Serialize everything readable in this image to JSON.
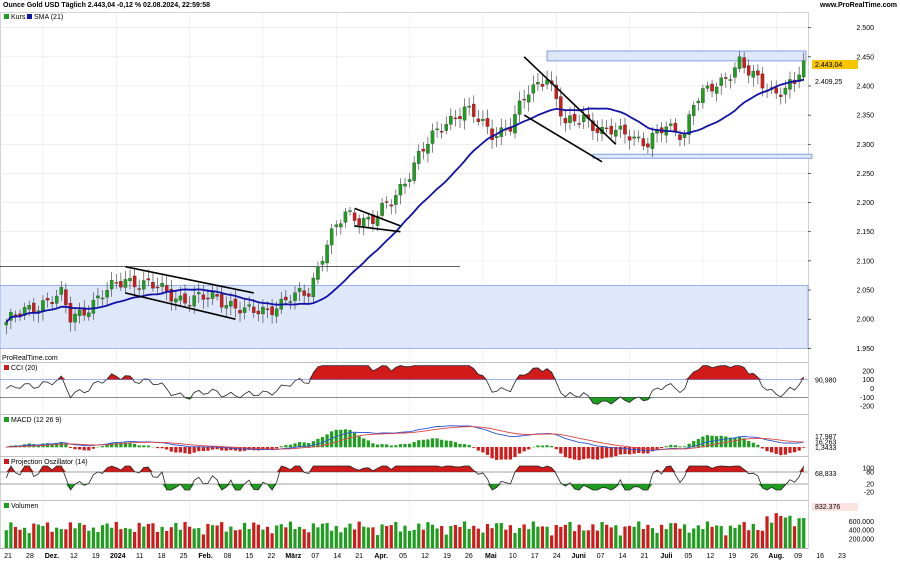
{
  "header": {
    "title": "Ounce Gold USD Täglich 2.443,04 -0,12 % 02.08.2024, 22:59:58",
    "source": "www.ProRealTime.com"
  },
  "watermark": "ProRealTime.com",
  "legend": {
    "kurs": "Kurs",
    "sma": "SMA (21)"
  },
  "colors": {
    "up": "#1e9e1e",
    "down": "#d11a1a",
    "sma": "#1212a8",
    "zone": "#dfe8fb",
    "zoneStroke": "#6a8ad8",
    "grid": "#e4e4e4"
  },
  "chart_data": [
    {
      "type": "candlestick",
      "title": "Ounce Gold USD Täglich",
      "series": [
        {
          "name": "Kurs"
        },
        {
          "name": "SMA (21)"
        }
      ],
      "ylim": [
        1930,
        2520
      ],
      "yticks": [
        "2.500",
        "2.450",
        "2.400",
        "2.350",
        "2.300",
        "2.250",
        "2.200",
        "2.150",
        "2.100",
        "2.050",
        "2.000",
        "1.950"
      ],
      "ytick_values": [
        2500,
        2450,
        2400,
        2350,
        2300,
        2250,
        2200,
        2150,
        2100,
        2050,
        2000,
        1950
      ],
      "last_price": "2.443,04",
      "last_price_value": 2443.04,
      "sma_last": "2.409,25",
      "sma_last_value": 2409.25,
      "zones": [
        {
          "y1": 2048,
          "y2": 2058,
          "x1_bar": 0,
          "x2_bar": 9999
        },
        {
          "y1": 1950,
          "y2": 2058,
          "x1_bar": 0,
          "x2_bar": 9999
        },
        {
          "y1": 2443,
          "y2": 2460,
          "x1_bar": 2,
          "x2_bar": 0
        },
        {
          "y1": 2276,
          "y2": 2283,
          "x1_bar": 3,
          "x2_bar": 0
        }
      ],
      "hline": {
        "y": 2090
      }
    },
    {
      "type": "line",
      "title": "CCI (20)",
      "levels": [
        "200",
        "100",
        "0",
        "-100",
        "-200"
      ],
      "level_values": [
        200,
        100,
        0,
        -100,
        -200
      ],
      "last": "90,980",
      "last_value": 90.98
    },
    {
      "type": "line",
      "title": "MACD (12 26 9)",
      "last": [
        "17,987",
        "16,263",
        "1,3433"
      ],
      "last_values": [
        17.987,
        16.263,
        1.3433
      ]
    },
    {
      "type": "line",
      "title": "Projection Oszillator (14)",
      "levels": [
        "100",
        "80",
        "20",
        "-20"
      ],
      "level_values": [
        100,
        80,
        20,
        -20
      ],
      "last": "68,833",
      "last_value": 68.833
    },
    {
      "type": "bar",
      "title": "Volumen",
      "yticks": [
        "600.000",
        "400.000",
        "200.000"
      ],
      "ytick_values": [
        600000,
        400000,
        200000
      ],
      "last": "832.376",
      "last_value": 832376
    }
  ],
  "xaxis": {
    "labels": [
      "21",
      "28",
      "Dez.",
      "12",
      "19",
      "2024",
      "11",
      "18",
      "25",
      "Feb.",
      "08",
      "15",
      "22",
      "März",
      "07",
      "14",
      "21",
      "Apr.",
      "05",
      "12",
      "19",
      "26",
      "Mai",
      "10",
      "17",
      "24",
      "Juni",
      "07",
      "14",
      "21",
      "Juli",
      "05",
      "12",
      "19",
      "26",
      "Aug.",
      "09",
      "16",
      "23"
    ],
    "bold": [
      "Dez.",
      "2024",
      "Feb.",
      "März",
      "Apr.",
      "Mai",
      "Juni",
      "Juli",
      "Aug."
    ]
  }
}
